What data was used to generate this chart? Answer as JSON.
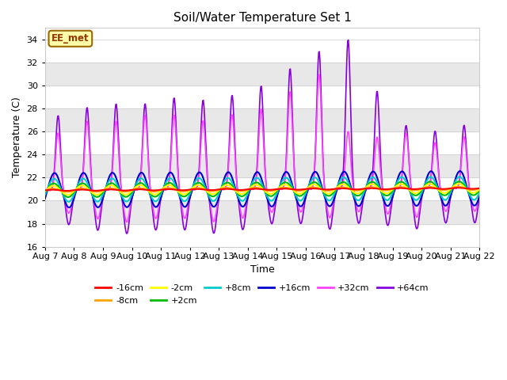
{
  "title": "Soil/Water Temperature Set 1",
  "xlabel": "Time",
  "ylabel": "Temperature (C)",
  "ylim": [
    16,
    35
  ],
  "yticks": [
    16,
    18,
    20,
    22,
    24,
    26,
    28,
    30,
    32,
    34
  ],
  "date_labels": [
    "Aug 7",
    "Aug 8",
    "Aug 9",
    "Aug 10",
    "Aug 11",
    "Aug 12",
    "Aug 13",
    "Aug 14",
    "Aug 15",
    "Aug 16",
    "Aug 17",
    "Aug 18",
    "Aug 19",
    "Aug 20",
    "Aug 21",
    "Aug 22"
  ],
  "series": {
    "-16cm": {
      "color": "#ff0000",
      "lw": 1.5,
      "zorder": 7
    },
    "-8cm": {
      "color": "#ffa500",
      "lw": 1.5,
      "zorder": 6
    },
    "-2cm": {
      "color": "#ffff00",
      "lw": 1.5,
      "zorder": 6
    },
    "+2cm": {
      "color": "#00bb00",
      "lw": 1.5,
      "zorder": 6
    },
    "+8cm": {
      "color": "#00cccc",
      "lw": 1.5,
      "zorder": 6
    },
    "+16cm": {
      "color": "#0000cc",
      "lw": 1.5,
      "zorder": 6
    },
    "+32cm": {
      "color": "#ff44ff",
      "lw": 1.2,
      "zorder": 4
    },
    "+64cm": {
      "color": "#8800dd",
      "lw": 1.2,
      "zorder": 3
    }
  },
  "watermark": "EE_met",
  "bg_color": "#ffffff",
  "band_color": "#e8e8e8",
  "n_days": 15,
  "pts_per_day": 48,
  "base_temp": 20.9,
  "trend": 0.012
}
